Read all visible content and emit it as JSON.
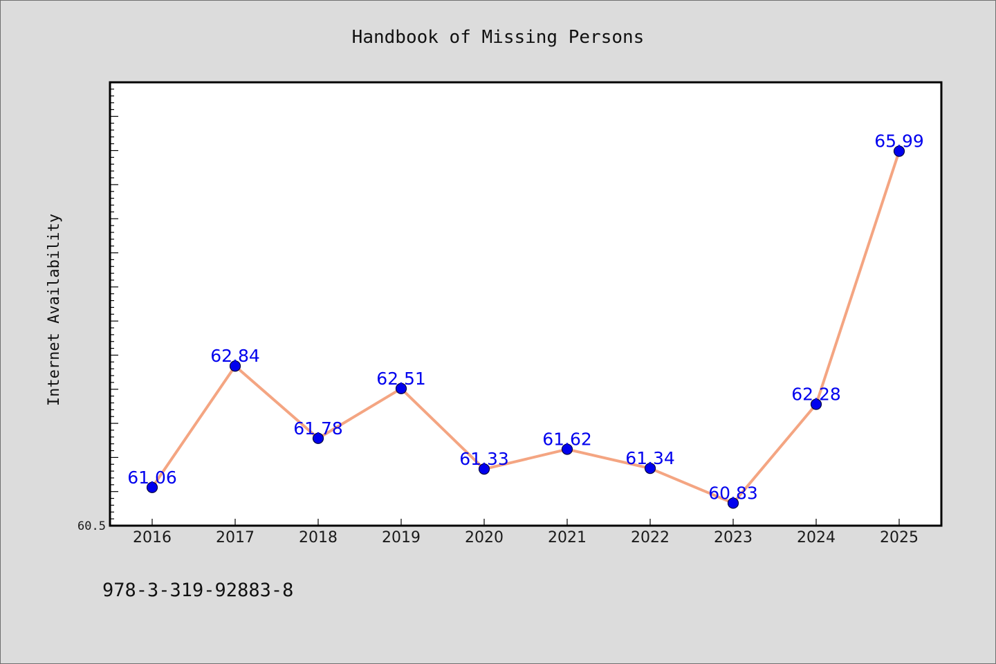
{
  "chart_data": {
    "type": "line",
    "title": "Handbook of Missing Persons",
    "xlabel": "",
    "ylabel": "Internet Availability",
    "categories": [
      "2016",
      "2017",
      "2018",
      "2019",
      "2020",
      "2021",
      "2022",
      "2023",
      "2024",
      "2025"
    ],
    "series": [
      {
        "values": [
          61.06,
          62.84,
          61.78,
          62.51,
          61.33,
          61.62,
          61.34,
          60.83,
          62.28,
          65.99
        ],
        "labels": [
          "61.06",
          "62.84",
          "61.78",
          "62.51",
          "61.33",
          "61.62",
          "61.34",
          "60.83",
          "62.28",
          "65.99"
        ]
      }
    ],
    "ylim": [
      60.5,
      67.0
    ],
    "yticks_labeled": [
      "60.5"
    ],
    "grid": false,
    "legend": "none",
    "colors": {
      "line": "#f4a582",
      "marker": "#0000ee",
      "data_label": "#0000ee",
      "plot_bg": "#ffffff",
      "figure_bg": "#dcdcdc"
    }
  },
  "footer_text": "978-3-319-92883-8"
}
